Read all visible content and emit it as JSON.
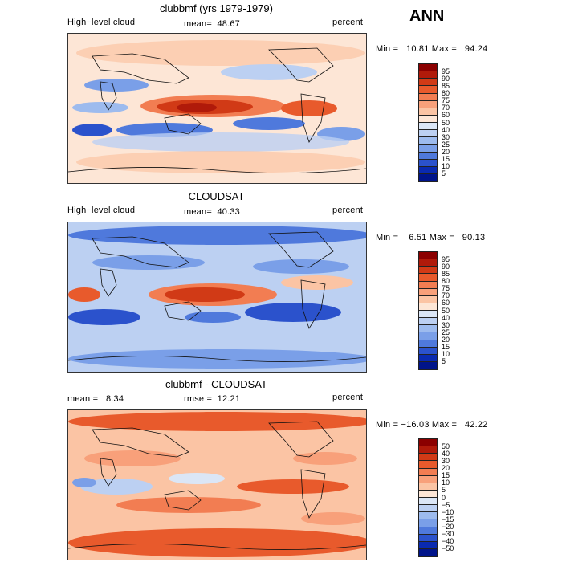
{
  "season": "ANN",
  "colorbars": {
    "abs": {
      "labels": [
        "95",
        "90",
        "85",
        "80",
        "75",
        "70",
        "60",
        "50",
        "40",
        "30",
        "25",
        "20",
        "15",
        "10",
        "5"
      ],
      "colors": [
        "#8b0000",
        "#b01a0a",
        "#d13a16",
        "#e85a2c",
        "#f27d52",
        "#f8a07a",
        "#fbc4a4",
        "#fde6d6",
        "#dbe6f6",
        "#bcd0f2",
        "#9dbbee",
        "#7a9fe8",
        "#4f79dc",
        "#2b52cc",
        "#0a2ab0",
        "#00148a"
      ]
    },
    "diff": {
      "labels": [
        "50",
        "40",
        "30",
        "20",
        "15",
        "10",
        "5",
        "0",
        "−5",
        "−10",
        "−15",
        "−20",
        "−30",
        "−40",
        "−50"
      ],
      "colors": [
        "#8b0000",
        "#b01a0a",
        "#d13a16",
        "#e85a2c",
        "#f27d52",
        "#f8a07a",
        "#fbc4a4",
        "#fde6d6",
        "#dbe6f6",
        "#bcd0f2",
        "#9dbbee",
        "#7a9fe8",
        "#4f79dc",
        "#2b52cc",
        "#0a2ab0",
        "#00148a"
      ]
    }
  },
  "panels": [
    {
      "title": "clubbmf (yrs 1979-1979)",
      "left_label": "High−level cloud",
      "mean_label": "mean=",
      "mean_value": "48.67",
      "units": "percent",
      "min_label": "Min =",
      "min_value": "10.81",
      "max_label": "Max =",
      "max_value": "94.24"
    },
    {
      "title": "CLOUDSAT",
      "left_label": "High−level cloud",
      "mean_label": "mean=",
      "mean_value": "40.33",
      "units": "percent",
      "min_label": "Min =",
      "min_value": "6.51",
      "max_label": "Max =",
      "max_value": "90.13"
    },
    {
      "title": "clubbmf - CLOUDSAT",
      "left_label": "mean =",
      "left_value": "8.34",
      "rmse_label": "rmse =",
      "rmse_value": "12.21",
      "units": "percent",
      "min_label": "Min =",
      "min_value": "−16.03",
      "max_label": "Max =",
      "max_value": "42.22"
    }
  ]
}
